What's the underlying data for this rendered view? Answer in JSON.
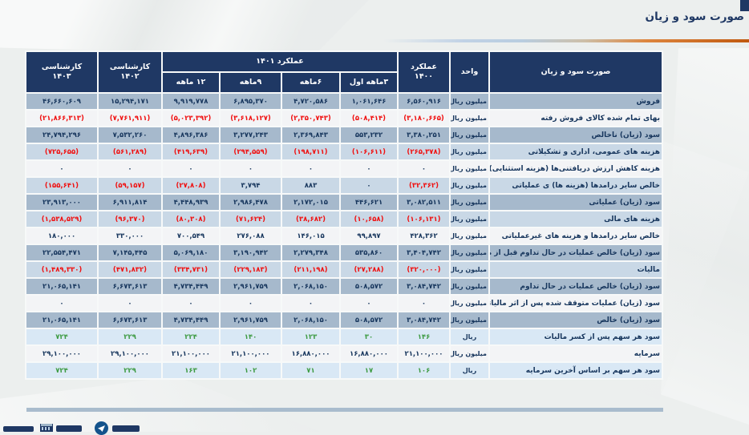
{
  "page": {
    "title": "صورت سود و زیان"
  },
  "colors": {
    "header_bg": "#1F3864",
    "row_dark": "#A6B9CC",
    "row_light": "#C9D8E6",
    "row_white": "#F3F4F6",
    "row_pale": "#D9E8F5",
    "text_navy": "#17365D",
    "negative_red": "#F00F0F",
    "eps_green": "#3E9B43",
    "rule_orange": "#C0590F",
    "rule_blue": "#B9CDE0"
  },
  "table": {
    "header": {
      "statement": "صورت سود و زیان",
      "unit": "واحد",
      "perf_1400_line1": "عملکرد",
      "perf_1400_line2": "۱۴۰۰",
      "perf_1401": "عملکرد ۱۴۰۱",
      "sub_periods": [
        "۳ماهه اول",
        "۶ماهه",
        "۹ماهه",
        "۱۲ ماهه"
      ],
      "exp_1402_line1": "کارشناسی",
      "exp_1402_line2": "۱۴۰۲",
      "exp_1403_line1": "کارشناسی",
      "exp_1403_line2": "۱۴۰۳"
    },
    "column_order_note": "values are ordered right-to-left as displayed: عملکرد ۱۴۰۰, ۳ماهه اول, ۶ماهه, ۹ماهه, ۱۲ ماهه, کارشناسی ۱۴۰۲, کارشناسی ۱۴۰۳",
    "rows": [
      {
        "label": "فروش",
        "unit": "میلیون ریال",
        "shade": "dark",
        "green": false,
        "values": [
          "۶,۵۶۰,۹۱۶",
          "۱,۰۶۱,۶۴۶",
          "۴,۷۲۰,۵۸۶",
          "۶,۸۹۵,۳۷۰",
          "۹,۹۱۹,۷۷۸",
          "۱۵,۲۹۴,۱۷۱",
          "۴۶,۶۶۰,۶۰۹"
        ]
      },
      {
        "label": "بهای تمام شده کالای فروش رفته",
        "unit": "میلیون ریال",
        "shade": "white",
        "green": false,
        "values": [
          "(۳,۱۸۰,۶۶۵)",
          "(۵۰۸,۴۱۴)",
          "(۲,۳۵۰,۷۴۳)",
          "(۳,۶۱۸,۱۲۷)",
          "(۵,۰۲۳,۳۹۲)",
          "(۷,۷۶۱,۹۱۱)",
          "(۲۱,۸۶۶,۳۱۳)"
        ]
      },
      {
        "label": "سود (زیان) ناخالص",
        "unit": "میلیون ریال",
        "shade": "dark",
        "green": false,
        "values": [
          "۳,۳۸۰,۲۵۱",
          "۵۵۳,۲۳۲",
          "۲,۳۶۹,۸۴۳",
          "۳,۲۷۷,۲۴۳",
          "۴,۸۹۶,۳۸۶",
          "۷,۵۳۲,۲۶۰",
          "۲۴,۷۹۴,۲۹۶"
        ]
      },
      {
        "label": "هزینه های عمومی، اداری و تشکیلاتی",
        "unit": "میلیون ریال",
        "shade": "light",
        "green": false,
        "values": [
          "(۲۶۵,۳۷۸)",
          "(۱۰۶,۶۱۱)",
          "(۱۹۸,۷۱۱)",
          "(۲۹۴,۵۵۹)",
          "(۴۱۹,۶۳۹)",
          "(۵۶۱,۲۸۹)",
          "(۷۲۵,۶۵۵)"
        ]
      },
      {
        "label": "هزینه کاهش ارزش دریافتنی‌ها (هزینه استثنایی)",
        "unit": "میلیون ریال",
        "shade": "white",
        "green": false,
        "values": [
          "۰",
          "۰",
          "۰",
          "۰",
          "۰",
          "۰",
          "۰"
        ]
      },
      {
        "label": "خالص سایر درامدها (هزینه ها) ی عملیاتی",
        "unit": "میلیون ریال",
        "shade": "light",
        "green": false,
        "values": [
          "(۳۲,۳۶۲)",
          "۰",
          "۸۸۳",
          "۳,۷۹۴",
          "(۲۷,۸۰۸)",
          "(۵۹,۱۵۷)",
          "(۱۵۵,۶۴۱)"
        ]
      },
      {
        "label": "سود (زیان) عملیاتی",
        "unit": "میلیون ریال",
        "shade": "dark",
        "green": false,
        "values": [
          "۳,۰۸۲,۵۱۱",
          "۴۴۶,۶۲۱",
          "۲,۱۷۲,۰۱۵",
          "۲,۹۸۶,۴۷۸",
          "۴,۴۴۸,۹۳۹",
          "۶,۹۱۱,۸۱۴",
          "۲۳,۹۱۳,۰۰۰"
        ]
      },
      {
        "label": "هزینه های مالی",
        "unit": "میلیون ریال",
        "shade": "light",
        "green": false,
        "values": [
          "(۱۰۶,۱۳۱)",
          "(۱۰,۶۵۸)",
          "(۳۸,۶۸۲)",
          "(۷۱,۶۲۴)",
          "(۸۰,۳۰۸)",
          "(۹۶,۳۷۰)",
          "(۱,۵۳۸,۵۲۹)"
        ]
      },
      {
        "label": "خالص سایر درامدها و هزینه های غیرعملیاتی",
        "unit": "میلیون ریال",
        "shade": "white",
        "green": false,
        "values": [
          "۴۲۸,۳۶۲",
          "۹۹,۸۹۷",
          "۱۴۶,۰۱۵",
          "۲۷۶,۰۸۸",
          "۷۰۰,۵۴۹",
          "۳۳۰,۰۰۰",
          "۱۸۰,۰۰۰"
        ]
      },
      {
        "label": "سود (زیان) خالص عملیات در حال تداوم قبل از مالیات",
        "unit": "میلیون ریال",
        "shade": "dark",
        "green": false,
        "values": [
          "۳,۴۰۴,۷۴۲",
          "۵۳۵,۸۶۰",
          "۲,۲۷۹,۳۴۸",
          "۳,۱۹۰,۹۴۲",
          "۵,۰۶۹,۱۸۰",
          "۷,۱۴۵,۴۴۵",
          "۲۲,۵۵۴,۴۷۱"
        ]
      },
      {
        "label": "مالیات",
        "unit": "میلیون ریال",
        "shade": "light",
        "green": false,
        "values": [
          "(۳۲۰,۰۰۰)",
          "(۲۷,۲۸۸)",
          "(۲۱۱,۱۹۸)",
          "(۲۲۹,۱۸۳)",
          "(۳۳۴,۷۳۱)",
          "(۴۷۱,۸۳۲)",
          "(۱,۴۸۹,۳۳۰)"
        ]
      },
      {
        "label": "سود (زیان) خالص عملیات در حال تداوم",
        "unit": "میلیون ریال",
        "shade": "dark",
        "green": false,
        "values": [
          "۳,۰۸۴,۷۴۲",
          "۵۰۸,۵۷۲",
          "۲,۰۶۸,۱۵۰",
          "۲,۹۶۱,۷۵۹",
          "۴,۷۳۴,۴۴۹",
          "۶,۶۷۳,۶۱۳",
          "۲۱,۰۶۵,۱۴۱"
        ]
      },
      {
        "label": "سود (زیان) عملیات متوقف شده پس از اثر مالیاتی",
        "unit": "میلیون ریال",
        "shade": "white",
        "green": false,
        "values": [
          "۰",
          "۰",
          "۰",
          "۰",
          "۰",
          "۰",
          "۰"
        ]
      },
      {
        "label": "سود (زیان) خالص",
        "unit": "میلیون ریال",
        "shade": "dark",
        "green": false,
        "values": [
          "۳,۰۸۴,۷۴۲",
          "۵۰۸,۵۷۲",
          "۲,۰۶۸,۱۵۰",
          "۲,۹۶۱,۷۵۹",
          "۴,۷۳۴,۴۴۹",
          "۶,۶۷۳,۶۱۳",
          "۲۱,۰۶۵,۱۴۱"
        ]
      },
      {
        "label": "سود هر سهم پس از کسر مالیات",
        "unit": "ریال",
        "shade": "pale",
        "green": true,
        "values": [
          "۱۴۶",
          "۳۰",
          "۱۲۳",
          "۱۴۰",
          "۲۲۴",
          "۲۲۹",
          "۷۲۴"
        ]
      },
      {
        "label": "سرمایه",
        "unit": "میلیون ریال",
        "shade": "white",
        "green": false,
        "values": [
          "۲۱,۱۰۰,۰۰۰",
          "۱۶,۸۸۰,۰۰۰",
          "۱۶,۸۸۰,۰۰۰",
          "۲۱,۱۰۰,۰۰۰",
          "۲۱,۱۰۰,۰۰۰",
          "۲۹,۱۰۰,۰۰۰",
          "۲۹,۱۰۰,۰۰۰"
        ]
      },
      {
        "label": "سود هر سهم بر اساس آخرین سرمایه",
        "unit": "ریال",
        "shade": "pale",
        "green": true,
        "values": [
          "۱۰۶",
          "۱۷",
          "۷۱",
          "۱۰۲",
          "۱۶۳",
          "۲۲۹",
          "۷۲۴"
        ]
      }
    ]
  },
  "footer": {
    "icons": [
      "factory-icon",
      "telegram-icon"
    ]
  }
}
